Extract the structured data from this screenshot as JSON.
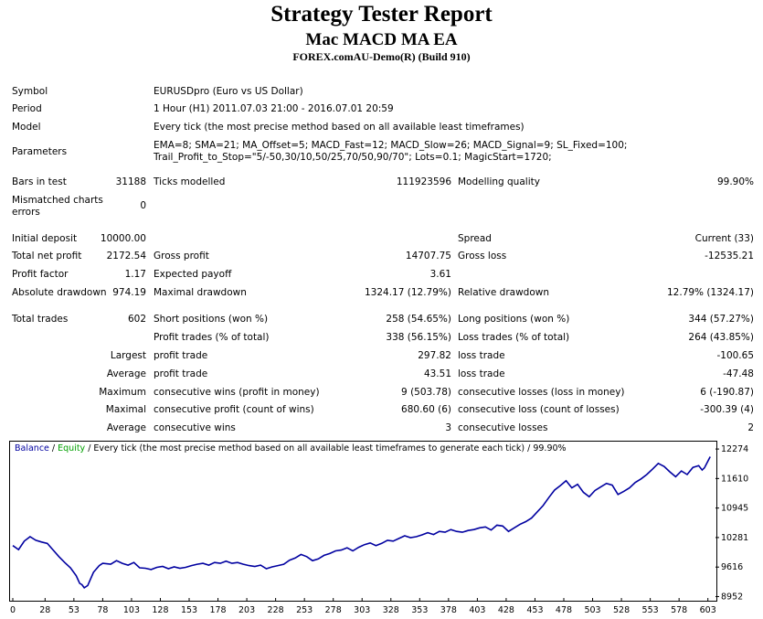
{
  "header": {
    "title": "Strategy Tester Report",
    "ea_name": "Mac MACD MA EA",
    "server": "FOREX.comAU-Demo(R) (Build 910)"
  },
  "info": {
    "symbol_label": "Symbol",
    "symbol": "EURUSDpro (Euro vs US Dollar)",
    "period_label": "Period",
    "period": "1 Hour (H1) 2011.07.03 21:00 - 2016.07.01 20:59",
    "model_label": "Model",
    "model": "Every tick (the most precise method based on all available least timeframes)",
    "parameters_label": "Parameters",
    "parameters_line1": "EMA=8; SMA=21; MA_Offset=5; MACD_Fast=12; MACD_Slow=26; MACD_Signal=9; SL_Fixed=100;",
    "parameters_line2": "Trail_Profit_to_Stop=\"5/-50,30/10,50/25,70/50,90/70\"; Lots=0.1; MagicStart=1720;"
  },
  "test": {
    "bars_label": "Bars in test",
    "bars": "31188",
    "ticks_label": "Ticks modelled",
    "ticks": "111923596",
    "quality_label": "Modelling quality",
    "quality": "99.90%",
    "mismatch_label_1": "Mismatched charts",
    "mismatch_label_2": "errors",
    "mismatch": "0"
  },
  "results": {
    "initial_deposit_label": "Initial deposit",
    "initial_deposit": "10000.00",
    "spread_label": "Spread",
    "spread": "Current (33)",
    "net_profit_label": "Total net profit",
    "net_profit": "2172.54",
    "gross_profit_label": "Gross profit",
    "gross_profit": "14707.75",
    "gross_loss_label": "Gross loss",
    "gross_loss": "-12535.21",
    "profit_factor_label": "Profit factor",
    "profit_factor": "1.17",
    "expected_payoff_label": "Expected payoff",
    "expected_payoff": "3.61",
    "abs_dd_label": "Absolute drawdown",
    "abs_dd": "974.19",
    "max_dd_label": "Maximal drawdown",
    "max_dd": "1324.17 (12.79%)",
    "rel_dd_label": "Relative drawdown",
    "rel_dd": "12.79% (1324.17)",
    "total_trades_label": "Total trades",
    "total_trades": "602",
    "short_label": "Short positions (won %)",
    "short": "258 (54.65%)",
    "long_label": "Long positions (won %)",
    "long": "344 (57.27%)",
    "profit_trades_label": "Profit trades (% of total)",
    "profit_trades": "338 (56.15%)",
    "loss_trades_label": "Loss trades (% of total)",
    "loss_trades": "264 (43.85%)",
    "largest_label": "Largest",
    "largest_profit_label": "profit trade",
    "largest_profit": "297.82",
    "largest_loss_label": "loss trade",
    "largest_loss": "-100.65",
    "average_label": "Average",
    "average_profit_label": "profit trade",
    "average_profit": "43.51",
    "average_loss_label": "loss trade",
    "average_loss": "-47.48",
    "maximum_label": "Maximum",
    "max_cons_wins_label": "consecutive wins (profit in money)",
    "max_cons_wins": "9 (503.78)",
    "max_cons_losses_label": "consecutive losses (loss in money)",
    "max_cons_losses": "6 (-190.87)",
    "maximal_label": "Maximal",
    "maximal_cons_profit_label": "consecutive profit (count of wins)",
    "maximal_cons_profit": "680.60 (6)",
    "maximal_cons_loss_label": "consecutive loss (count of losses)",
    "maximal_cons_loss": "-300.39 (4)",
    "average2_label": "Average",
    "avg_cons_wins_label": "consecutive wins",
    "avg_cons_wins": "3",
    "avg_cons_losses_label": "consecutive losses",
    "avg_cons_losses": "2"
  },
  "legend": {
    "balance": "Balance",
    "sep1": " / ",
    "equity": "Equity",
    "rest": " / Every tick (the most precise method based on all available least timeframes to generate each tick) / 99.90%"
  },
  "colors": {
    "balance": "#0000a0",
    "equity": "#00a000"
  },
  "chart_data": {
    "type": "line",
    "title": "",
    "xlabel": "",
    "ylabel": "",
    "x_ticks": [
      0,
      28,
      53,
      78,
      103,
      128,
      153,
      178,
      203,
      228,
      253,
      278,
      303,
      328,
      353,
      378,
      403,
      428,
      453,
      478,
      503,
      528,
      553,
      578,
      603
    ],
    "y_ticks": [
      8952,
      9616,
      10281,
      10945,
      11610,
      12274
    ],
    "xlim": [
      0,
      608
    ],
    "ylim": [
      8900,
      12420
    ],
    "series": [
      {
        "name": "Balance",
        "x": [
          0,
          5,
          10,
          15,
          20,
          25,
          30,
          35,
          40,
          45,
          50,
          55,
          58,
          60,
          62,
          65,
          70,
          75,
          78,
          85,
          90,
          95,
          100,
          105,
          110,
          115,
          120,
          125,
          130,
          135,
          140,
          145,
          150,
          155,
          160,
          165,
          170,
          175,
          180,
          185,
          190,
          195,
          200,
          205,
          210,
          215,
          220,
          225,
          230,
          235,
          240,
          245,
          250,
          255,
          260,
          265,
          270,
          275,
          280,
          285,
          290,
          295,
          300,
          305,
          310,
          315,
          320,
          325,
          330,
          335,
          340,
          345,
          350,
          355,
          360,
          365,
          370,
          375,
          380,
          385,
          390,
          395,
          400,
          405,
          410,
          415,
          420,
          425,
          430,
          435,
          440,
          445,
          450,
          455,
          460,
          465,
          470,
          475,
          480,
          485,
          490,
          495,
          500,
          505,
          510,
          515,
          520,
          525,
          530,
          535,
          540,
          545,
          550,
          555,
          560,
          565,
          570,
          575,
          580,
          585,
          590,
          595,
          598,
          600,
          603,
          605
        ],
        "y": [
          10100,
          10010,
          10200,
          10300,
          10220,
          10180,
          10150,
          10000,
          9850,
          9720,
          9600,
          9420,
          9250,
          9220,
          9150,
          9200,
          9500,
          9650,
          9700,
          9680,
          9760,
          9700,
          9660,
          9720,
          9600,
          9590,
          9560,
          9610,
          9630,
          9580,
          9620,
          9590,
          9610,
          9650,
          9680,
          9700,
          9660,
          9720,
          9700,
          9750,
          9700,
          9720,
          9680,
          9650,
          9630,
          9660,
          9580,
          9620,
          9650,
          9680,
          9770,
          9820,
          9900,
          9850,
          9760,
          9800,
          9880,
          9920,
          9980,
          10000,
          10050,
          9980,
          10060,
          10120,
          10160,
          10100,
          10150,
          10220,
          10200,
          10260,
          10320,
          10280,
          10300,
          10340,
          10390,
          10350,
          10420,
          10400,
          10460,
          10420,
          10400,
          10440,
          10460,
          10500,
          10520,
          10450,
          10560,
          10540,
          10420,
          10500,
          10580,
          10640,
          10720,
          10860,
          11000,
          11180,
          11350,
          11450,
          11560,
          11400,
          11480,
          11300,
          11200,
          11340,
          11420,
          11500,
          11460,
          11250,
          11320,
          11400,
          11520,
          11600,
          11700,
          11820,
          11950,
          11880,
          11760,
          11650,
          11780,
          11700,
          11860,
          11900,
          11800,
          11850,
          12000,
          12100
        ]
      }
    ]
  }
}
